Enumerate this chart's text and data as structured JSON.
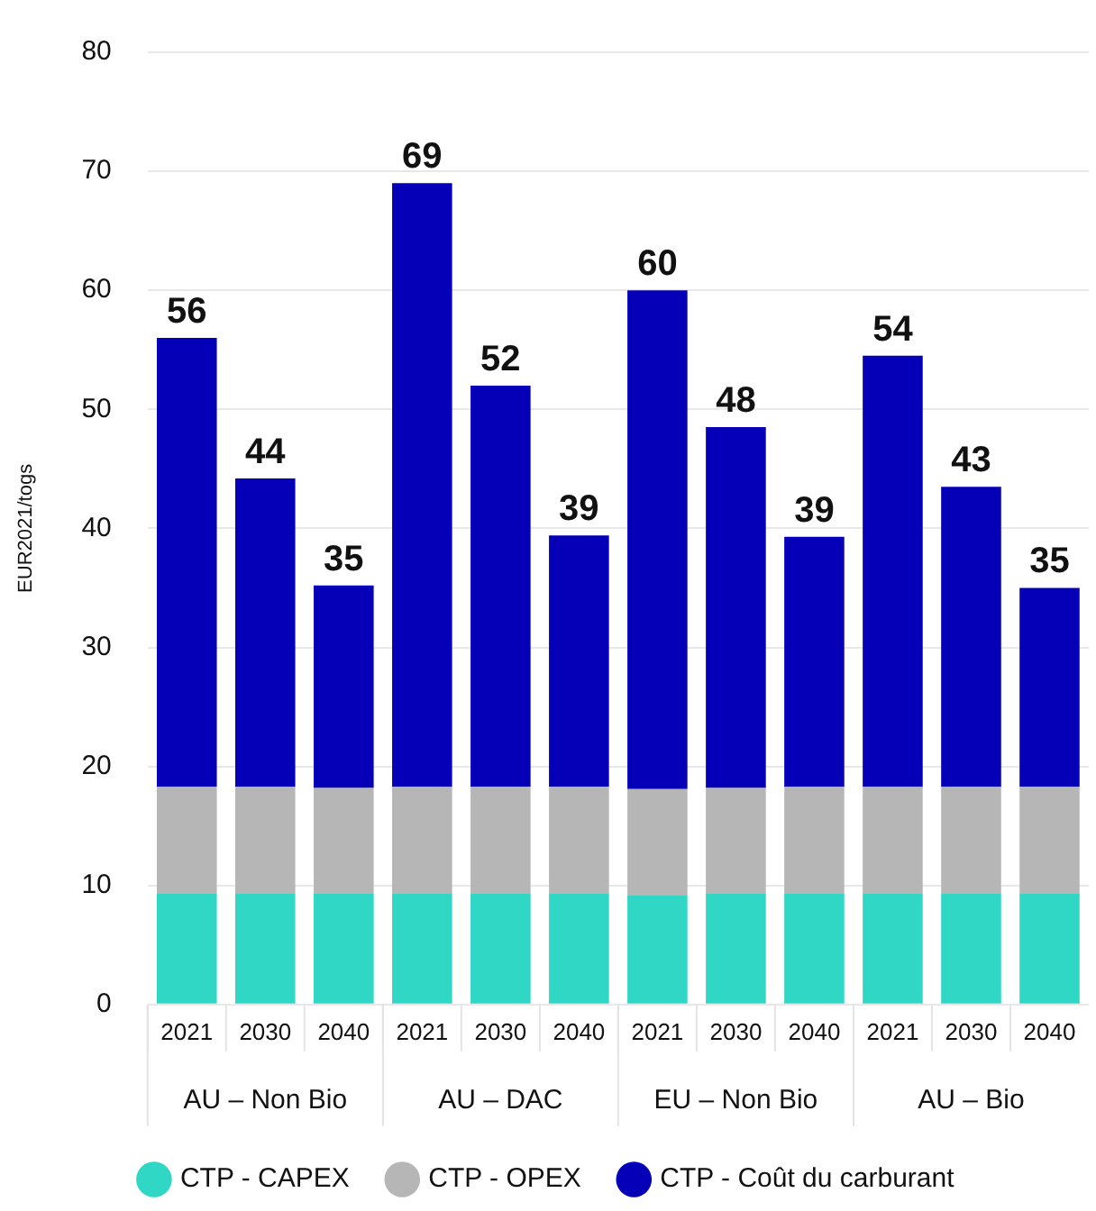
{
  "chart_data": {
    "type": "bar",
    "stacked": true,
    "ylabel": "EUR2021/togs",
    "categories": [
      "2021",
      "2030",
      "2040",
      "2021",
      "2030",
      "2040",
      "2021",
      "2030",
      "2040",
      "2021",
      "2030",
      "2040"
    ],
    "series": [
      {
        "name": "CTP - CAPEX",
        "color": "#2fd7c4",
        "values": [
          9.3,
          9.3,
          9.3,
          9.3,
          9.3,
          9.3,
          9.2,
          9.3,
          9.3,
          9.3,
          9.3,
          9.3
        ]
      },
      {
        "name": "CTP - OPEX",
        "color": "#b5b6b5",
        "values": [
          9,
          9,
          8.9,
          9,
          9,
          9,
          8.9,
          8.9,
          9,
          9,
          9,
          9
        ]
      },
      {
        "name": "CTP - Coût du carburant",
        "color": "#0500b8",
        "values": [
          37.7,
          25.9,
          17,
          50.7,
          33.7,
          21.1,
          41.9,
          30.3,
          21,
          36.2,
          25.2,
          16.7
        ]
      }
    ],
    "totals": [
      "56",
      "44",
      "35",
      "69",
      "52",
      "39",
      "60",
      "48",
      "39",
      "54",
      "43",
      "35"
    ],
    "annotations": [
      "AU – Non Bio",
      "AU – DAC",
      "EU – Non Bio",
      "AU – Bio"
    ],
    "ylim": [
      0,
      80
    ],
    "yticks": [
      0,
      10,
      20,
      30,
      40,
      50,
      60,
      70,
      80
    ],
    "grid": "y",
    "legend": "bottom"
  }
}
